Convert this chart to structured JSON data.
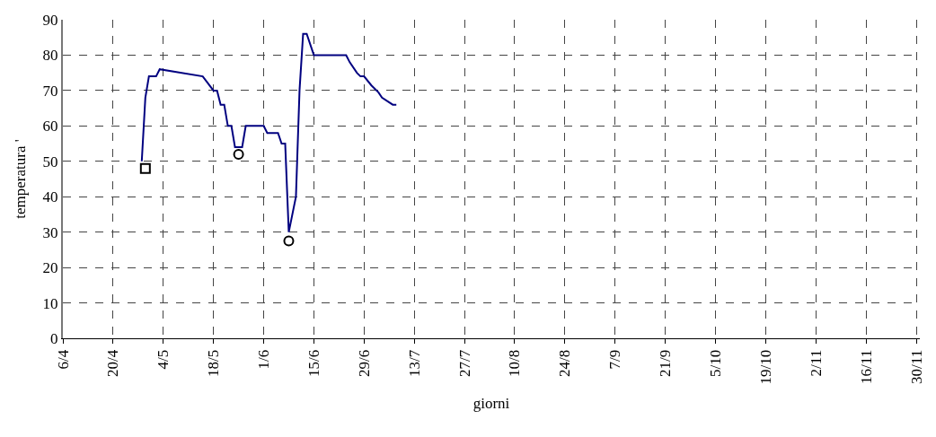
{
  "chart_data": {
    "type": "line",
    "xlabel": "giorni",
    "ylabel": "temperatura '",
    "x": [
      "--04-28",
      "--04-29",
      "--04-30",
      "--05-02",
      "--05-03",
      "--05-15",
      "--05-18",
      "--05-19",
      "--05-20",
      "--05-21",
      "--05-22",
      "--05-23",
      "--05-24",
      "--05-26",
      "--05-27",
      "--06-01",
      "--06-02",
      "--06-05",
      "--06-06",
      "--06-07",
      "--06-08",
      "--06-10",
      "--06-11",
      "--06-12",
      "--06-13",
      "--06-15",
      "--06-24",
      "--06-25",
      "--06-27",
      "--06-28",
      "--06-29",
      "--07-01",
      "--07-03",
      "--07-04",
      "--07-07",
      "--07-08"
    ],
    "series": [
      {
        "color": "#000080",
        "values": [
          50,
          68,
          74,
          74,
          76,
          74,
          70,
          70,
          66,
          66,
          60,
          60,
          54,
          54,
          60,
          60,
          58,
          58,
          55,
          55,
          30,
          40,
          70,
          86,
          86,
          80,
          80,
          78,
          75,
          74,
          74,
          71.5,
          69.5,
          68,
          66,
          66
        ]
      },
      {
        "type": "scatter",
        "marker": "square",
        "color": "#000000",
        "x": [
          "--04-29"
        ],
        "values": [
          48
        ]
      },
      {
        "type": "scatter",
        "marker": "circle",
        "color": "#000000",
        "x": [
          "--05-25",
          "--06-08"
        ],
        "values": [
          52,
          27.5
        ]
      }
    ],
    "xlim": [
      "--04-06",
      "--12-01"
    ],
    "xticks": [
      {
        "value": "--04-06",
        "label": "6/4"
      },
      {
        "value": "--04-20",
        "label": "20/4"
      },
      {
        "value": "--05-04",
        "label": "4/5"
      },
      {
        "value": "--05-18",
        "label": "18/5"
      },
      {
        "value": "--06-01",
        "label": "1/6"
      },
      {
        "value": "--06-15",
        "label": "15/6"
      },
      {
        "value": "--06-29",
        "label": "29/6"
      },
      {
        "value": "--07-13",
        "label": "13/7"
      },
      {
        "value": "--07-27",
        "label": "27/7"
      },
      {
        "value": "--08-10",
        "label": "10/8"
      },
      {
        "value": "--08-24",
        "label": "24/8"
      },
      {
        "value": "--09-07",
        "label": "7/9"
      },
      {
        "value": "--09-21",
        "label": "21/9"
      },
      {
        "value": "--10-05",
        "label": "5/10"
      },
      {
        "value": "--10-19",
        "label": "19/10"
      },
      {
        "value": "--11-02",
        "label": "2/11"
      },
      {
        "value": "--11-16",
        "label": "16/11"
      },
      {
        "value": "--11-30",
        "label": "30/11"
      }
    ],
    "ylim": [
      0,
      90
    ],
    "yticks": [
      0,
      10,
      20,
      30,
      40,
      50,
      60,
      70,
      80,
      90
    ],
    "grid": true,
    "marker": "none",
    "line_style": "solid"
  }
}
